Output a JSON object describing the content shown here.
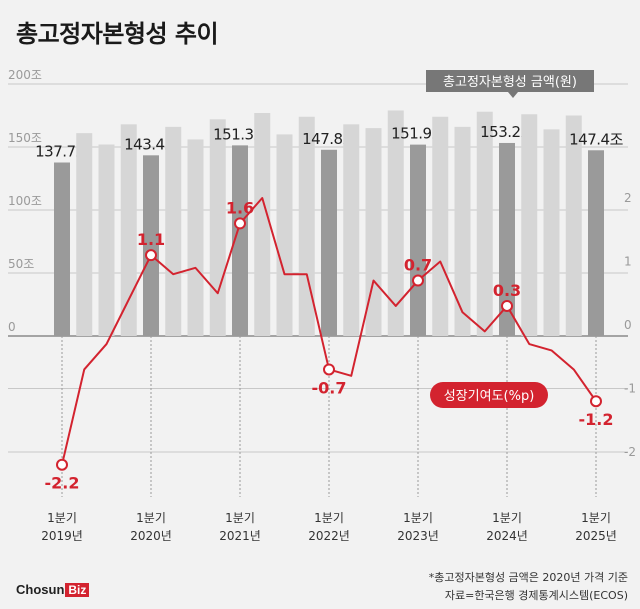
{
  "title": "총고정자본형성 추이",
  "legend": {
    "bar_label": "총고정자본형성 금액(원)",
    "line_label": "성장기여도(%p)"
  },
  "footnotes": {
    "line1": "*총고정자본형성 금액은 2020년 가격 기준",
    "line2": "자료=한국은행 경제통계시스템(ECOS)"
  },
  "logo": {
    "text": "Chosun",
    "badge": "Biz"
  },
  "colors": {
    "bar_light": "#d6d6d6",
    "bar_dark": "#9a9a9a",
    "line": "#d3232f",
    "background": "#f2f2f2",
    "legend_box": "#777777"
  },
  "chart_data": {
    "type": "bar+line",
    "grid": true,
    "left_axis": {
      "ylim": [
        -200,
        200
      ],
      "ticks": [
        "0",
        "50조",
        "100조",
        "150조",
        "200조"
      ]
    },
    "right_axis": {
      "ylim": [
        -2.5,
        3.2
      ],
      "ticks": [
        "-2",
        "-1",
        "0",
        "1",
        "2"
      ]
    },
    "quarters": [
      "2019Q1",
      "2019Q2",
      "2019Q3",
      "2019Q4",
      "2020Q1",
      "2020Q2",
      "2020Q3",
      "2020Q4",
      "2021Q1",
      "2021Q2",
      "2021Q3",
      "2021Q4",
      "2022Q1",
      "2022Q2",
      "2022Q3",
      "2022Q4",
      "2023Q1",
      "2023Q2",
      "2023Q3",
      "2023Q4",
      "2024Q1",
      "2024Q2",
      "2024Q3",
      "2024Q4",
      "2025Q1"
    ],
    "x_tick_labels": [
      {
        "index": 0,
        "line1": "1분기",
        "line2": "2019년"
      },
      {
        "index": 4,
        "line1": "1분기",
        "line2": "2020년"
      },
      {
        "index": 8,
        "line1": "1분기",
        "line2": "2021년"
      },
      {
        "index": 12,
        "line1": "1분기",
        "line2": "2022년"
      },
      {
        "index": 16,
        "line1": "1분기",
        "line2": "2023년"
      },
      {
        "index": 20,
        "line1": "1분기",
        "line2": "2024년"
      },
      {
        "index": 24,
        "line1": "1분기",
        "line2": "2025년"
      }
    ],
    "bar_series": {
      "name": "총고정자본형성 금액(원)",
      "values": [
        137.7,
        161,
        152,
        168,
        143.4,
        166,
        156,
        172,
        151.3,
        177,
        160,
        174,
        147.8,
        168,
        165,
        179,
        151.9,
        174,
        166,
        178,
        153.2,
        176,
        164,
        175,
        147.4
      ],
      "labels": [
        "137.7조",
        "",
        "",
        "",
        "143.4조",
        "",
        "",
        "",
        "151.3조",
        "",
        "",
        "",
        "147.8조",
        "",
        "",
        "",
        "151.9조",
        "",
        "",
        "",
        "153.2조",
        "",
        "",
        "",
        "147.4조"
      ]
    },
    "line_series": {
      "name": "성장기여도(%p)",
      "values": [
        -2.2,
        -0.7,
        -0.3,
        0.4,
        1.1,
        0.8,
        0.9,
        0.5,
        1.6,
        2.0,
        0.8,
        0.8,
        -0.7,
        -0.8,
        0.7,
        0.3,
        0.7,
        1.0,
        0.2,
        -0.1,
        0.3,
        -0.3,
        -0.4,
        -0.7,
        -1.2
      ],
      "labels": [
        "-2.2",
        "",
        "",
        "",
        "1.1",
        "",
        "",
        "",
        "1.6",
        "",
        "",
        "",
        "-0.7",
        "",
        "",
        "",
        "0.7",
        "",
        "",
        "",
        "0.3",
        "",
        "",
        "",
        "-1.2"
      ]
    }
  }
}
